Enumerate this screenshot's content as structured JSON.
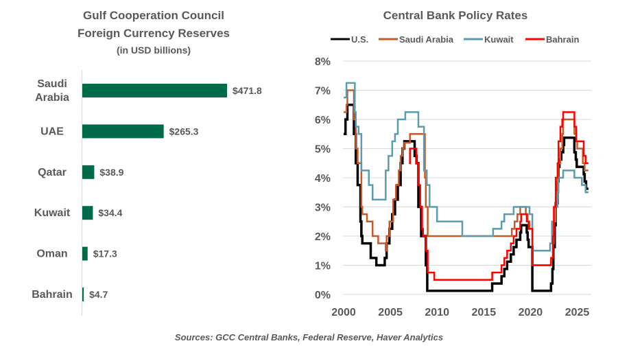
{
  "chart_data": [
    {
      "type": "bar",
      "orientation": "horizontal",
      "title": "Gulf Cooperation Council",
      "title_line2": "Foreign Currency Reserves",
      "subtitle": "(in USD billions)",
      "categories": [
        "Saudi Arabia",
        "UAE",
        "Qatar",
        "Kuwait",
        "Oman",
        "Bahrain"
      ],
      "category_lines": [
        [
          "Saudi",
          "Arabia"
        ],
        [
          "UAE"
        ],
        [
          "Qatar"
        ],
        [
          "Kuwait"
        ],
        [
          "Oman"
        ],
        [
          "Bahrain"
        ]
      ],
      "values": [
        471.8,
        265.3,
        38.9,
        34.4,
        17.3,
        4.7
      ],
      "data_labels": [
        "$471.8",
        "$265.3",
        "$38.9",
        "$34.4",
        "$17.3",
        "$4.7"
      ],
      "color": "#006B4A"
    },
    {
      "type": "line",
      "title": "Central Bank Policy Rates",
      "ylim": [
        0,
        8
      ],
      "xlim": [
        2000,
        2026.2
      ],
      "yticks": [
        "0%",
        "1%",
        "2%",
        "3%",
        "4%",
        "5%",
        "6%",
        "7%",
        "8%"
      ],
      "xticks": [
        "2000",
        "2005",
        "2010",
        "2015",
        "2020",
        "2025"
      ],
      "grid": true,
      "legend": "top",
      "step": true,
      "series": [
        {
          "name": "U.S.",
          "color": "#000000",
          "points": [
            [
              2000,
              5.5
            ],
            [
              2000.2,
              6
            ],
            [
              2000.4,
              6.5
            ],
            [
              2001.0,
              6.5
            ],
            [
              2001.1,
              5.5
            ],
            [
              2001.3,
              4.5
            ],
            [
              2001.5,
              3.75
            ],
            [
              2001.8,
              2.5
            ],
            [
              2001.9,
              2.0
            ],
            [
              2002.0,
              1.75
            ],
            [
              2002.9,
              1.25
            ],
            [
              2003.5,
              1.0
            ],
            [
              2004.4,
              1.25
            ],
            [
              2004.6,
              1.75
            ],
            [
              2004.9,
              2.25
            ],
            [
              2005.2,
              2.75
            ],
            [
              2005.5,
              3.25
            ],
            [
              2005.8,
              3.75
            ],
            [
              2006.1,
              4.5
            ],
            [
              2006.3,
              5.0
            ],
            [
              2006.5,
              5.25
            ],
            [
              2007.6,
              4.75
            ],
            [
              2007.8,
              4.5
            ],
            [
              2008.0,
              3.0
            ],
            [
              2008.3,
              2.0
            ],
            [
              2008.8,
              1.0
            ],
            [
              2008.95,
              0.125
            ],
            [
              2015.9,
              0.375
            ],
            [
              2016.9,
              0.625
            ],
            [
              2017.2,
              0.875
            ],
            [
              2017.5,
              1.125
            ],
            [
              2017.9,
              1.375
            ],
            [
              2018.2,
              1.625
            ],
            [
              2018.5,
              1.875
            ],
            [
              2018.9,
              2.125
            ],
            [
              2019.0,
              2.375
            ],
            [
              2019.6,
              2.125
            ],
            [
              2019.7,
              1.875
            ],
            [
              2019.8,
              1.625
            ],
            [
              2020.2,
              0.125
            ],
            [
              2022.2,
              0.375
            ],
            [
              2022.35,
              0.875
            ],
            [
              2022.45,
              1.625
            ],
            [
              2022.6,
              2.375
            ],
            [
              2022.7,
              3.125
            ],
            [
              2022.9,
              3.875
            ],
            [
              2023.0,
              4.375
            ],
            [
              2023.1,
              4.625
            ],
            [
              2023.3,
              4.875
            ],
            [
              2023.5,
              5.125
            ],
            [
              2023.6,
              5.375
            ],
            [
              2024.7,
              4.875
            ],
            [
              2024.85,
              4.625
            ],
            [
              2024.95,
              4.375
            ],
            [
              2025.7,
              4.125
            ],
            [
              2025.8,
              3.875
            ],
            [
              2025.95,
              3.625
            ],
            [
              2026.2,
              3.625
            ]
          ]
        },
        {
          "name": "Saudi Arabia",
          "color": "#C55A28",
          "points": [
            [
              2000,
              6.25
            ],
            [
              2000.3,
              6.5
            ],
            [
              2000.4,
              7.0
            ],
            [
              2000.9,
              7.0
            ],
            [
              2001.1,
              6.0
            ],
            [
              2001.3,
              5.0
            ],
            [
              2001.5,
              4.5
            ],
            [
              2001.9,
              3.0
            ],
            [
              2002.0,
              2.75
            ],
            [
              2002.5,
              2.5
            ],
            [
              2003.1,
              2.0
            ],
            [
              2003.7,
              1.75
            ],
            [
              2004.5,
              1.5
            ],
            [
              2004.6,
              2.0
            ],
            [
              2004.9,
              2.5
            ],
            [
              2005.3,
              3.25
            ],
            [
              2005.6,
              3.75
            ],
            [
              2005.9,
              4.25
            ],
            [
              2006.1,
              4.75
            ],
            [
              2006.3,
              5.0
            ],
            [
              2006.5,
              5.2
            ],
            [
              2007.1,
              5.5
            ],
            [
              2008.7,
              4.0
            ],
            [
              2008.8,
              3.0
            ],
            [
              2009.0,
              2.0
            ],
            [
              2018.0,
              2.25
            ],
            [
              2018.3,
              2.5
            ],
            [
              2018.6,
              2.75
            ],
            [
              2018.9,
              3.0
            ],
            [
              2019.5,
              2.75
            ],
            [
              2019.7,
              2.5
            ],
            [
              2019.9,
              2.25
            ],
            [
              2020.2,
              1.0
            ],
            [
              2022.2,
              1.25
            ],
            [
              2022.4,
              1.75
            ],
            [
              2022.5,
              2.5
            ],
            [
              2022.7,
              3.25
            ],
            [
              2022.9,
              4.0
            ],
            [
              2023.0,
              4.5
            ],
            [
              2023.2,
              5.0
            ],
            [
              2023.4,
              5.5
            ],
            [
              2023.5,
              6.0
            ],
            [
              2024.7,
              5.5
            ],
            [
              2024.9,
              5.25
            ],
            [
              2025.0,
              5.0
            ],
            [
              2025.6,
              4.5
            ],
            [
              2025.8,
              4.25
            ],
            [
              2026.2,
              4.25
            ]
          ]
        },
        {
          "name": "Kuwait",
          "color": "#5B9BAE",
          "points": [
            [
              2000,
              6.75
            ],
            [
              2000.3,
              7.25
            ],
            [
              2001.0,
              7.25
            ],
            [
              2001.2,
              6.25
            ],
            [
              2001.3,
              5.75
            ],
            [
              2001.6,
              5.5
            ],
            [
              2001.9,
              4.25
            ],
            [
              2002.7,
              3.75
            ],
            [
              2003.1,
              3.25
            ],
            [
              2004.5,
              4.25
            ],
            [
              2004.8,
              4.75
            ],
            [
              2005.2,
              5.25
            ],
            [
              2005.5,
              5.5
            ],
            [
              2005.8,
              6.0
            ],
            [
              2006.6,
              6.25
            ],
            [
              2008.0,
              5.75
            ],
            [
              2008.6,
              4.25
            ],
            [
              2008.9,
              3.75
            ],
            [
              2009.2,
              3.0
            ],
            [
              2010.0,
              2.5
            ],
            [
              2012.7,
              2.0
            ],
            [
              2016.0,
              2.25
            ],
            [
              2016.9,
              2.5
            ],
            [
              2017.2,
              2.75
            ],
            [
              2018.2,
              3.0
            ],
            [
              2019.9,
              2.75
            ],
            [
              2020.2,
              1.5
            ],
            [
              2022.1,
              1.75
            ],
            [
              2022.3,
              2.5
            ],
            [
              2022.6,
              3.0
            ],
            [
              2022.9,
              3.5
            ],
            [
              2023.0,
              4.0
            ],
            [
              2023.5,
              4.25
            ],
            [
              2024.7,
              4.0
            ],
            [
              2025.5,
              3.75
            ],
            [
              2025.9,
              3.5
            ],
            [
              2026.2,
              3.5
            ]
          ]
        },
        {
          "name": "Bahrain",
          "color": "#FF0000",
          "points": [
            [
              2007.0,
              4.5
            ],
            [
              2007.1,
              5.0
            ],
            [
              2007.8,
              4.5
            ],
            [
              2008.0,
              3.75
            ],
            [
              2008.2,
              3.0
            ],
            [
              2008.4,
              2.25
            ],
            [
              2008.5,
              2.0
            ],
            [
              2008.8,
              1.5
            ],
            [
              2009.0,
              0.75
            ],
            [
              2009.7,
              0.5
            ],
            [
              2015.9,
              0.75
            ],
            [
              2016.9,
              1.0
            ],
            [
              2017.2,
              1.25
            ],
            [
              2017.5,
              1.5
            ],
            [
              2017.9,
              1.75
            ],
            [
              2018.2,
              2.0
            ],
            [
              2018.5,
              2.25
            ],
            [
              2018.9,
              2.5
            ],
            [
              2019.0,
              2.75
            ],
            [
              2019.6,
              2.5
            ],
            [
              2019.8,
              2.25
            ],
            [
              2020.2,
              1.0
            ],
            [
              2022.2,
              1.25
            ],
            [
              2022.4,
              2.0
            ],
            [
              2022.5,
              3.0
            ],
            [
              2022.7,
              4.0
            ],
            [
              2022.9,
              4.5
            ],
            [
              2023.0,
              5.25
            ],
            [
              2023.2,
              5.75
            ],
            [
              2023.4,
              6.0
            ],
            [
              2023.5,
              6.25
            ],
            [
              2024.7,
              5.75
            ],
            [
              2024.9,
              5.25
            ],
            [
              2025.7,
              4.75
            ],
            [
              2025.9,
              4.5
            ],
            [
              2026.2,
              4.5
            ]
          ]
        }
      ]
    }
  ],
  "source": "Sources: GCC Central Banks, Federal Reserve, Haver Analytics"
}
